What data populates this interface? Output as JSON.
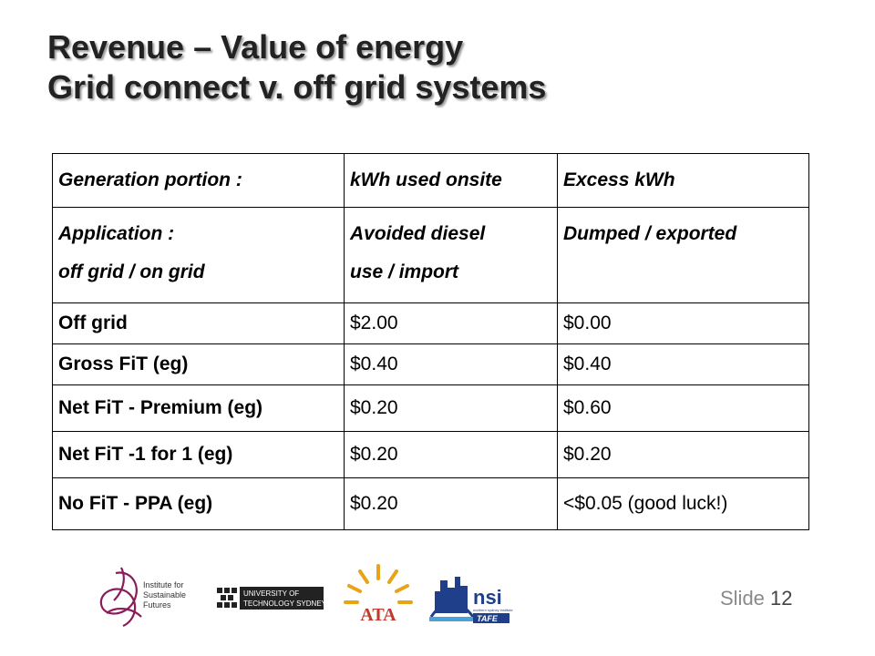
{
  "title": {
    "line1": "Revenue – Value of energy",
    "line2": "Grid connect v. off grid systems"
  },
  "table": {
    "header1": [
      "Generation portion :",
      "kWh used onsite",
      "Excess kWh"
    ],
    "header2": {
      "col1_line1": "Application :",
      "col1_line2": "off grid / on grid",
      "col2_line1": "Avoided diesel",
      "col2_line2": "use / import",
      "col3_line1": "Dumped / exported"
    },
    "rows": [
      [
        "Off grid",
        "$2.00",
        "$0.00"
      ],
      [
        "Gross FiT (eg)",
        "$0.40",
        "$0.40"
      ],
      [
        "Net FiT - Premium (eg)",
        "$0.20",
        "$0.60"
      ],
      [
        "Net FiT -1 for 1 (eg)",
        "$0.20",
        "$0.20"
      ],
      [
        "No FiT - PPA (eg)",
        "$0.20",
        "<$0.05 (good luck!)"
      ]
    ]
  },
  "logos": {
    "isf": {
      "line1": "Institute for",
      "line2": "Sustainable",
      "line3": "Futures"
    },
    "uts": {
      "line1": "UNIVERSITY OF",
      "line2": "TECHNOLOGY SYDNEY"
    },
    "ata": "ATA",
    "nsi": {
      "name": "nsi",
      "tafe": "TAFE",
      "tagline": "northern sydney institute"
    }
  },
  "slide": {
    "label": "Slide",
    "number": "12"
  }
}
